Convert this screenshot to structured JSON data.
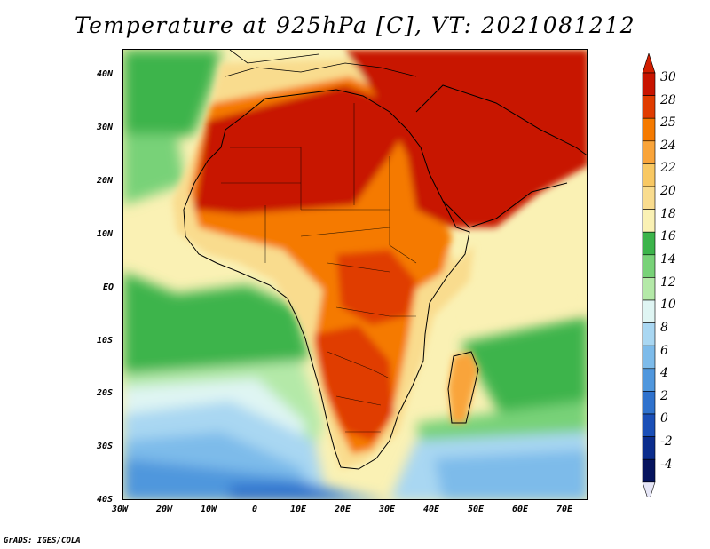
{
  "title": "Temperature at 925hPa [C], VT: 2021081212",
  "footer": "GrADS: IGES/COLA",
  "map": {
    "lon_ticks": [
      "30W",
      "20W",
      "10W",
      "0",
      "10E",
      "20E",
      "30E",
      "40E",
      "50E",
      "60E",
      "70E"
    ],
    "lat_ticks": [
      "40N",
      "30N",
      "20N",
      "10N",
      "EQ",
      "10S",
      "20S",
      "30S",
      "40S"
    ]
  },
  "colorbar": {
    "labels": [
      "30",
      "28",
      "25",
      "24",
      "22",
      "20",
      "18",
      "16",
      "14",
      "12",
      "10",
      "8",
      "6",
      "4",
      "2",
      "0",
      "-2",
      "-4"
    ],
    "colors": [
      "#c81400",
      "#e03c00",
      "#f57a00",
      "#f9a43a",
      "#f8c863",
      "#f9dc8e",
      "#faf1b4",
      "#3cb44b",
      "#78d278",
      "#b4e9a8",
      "#dff5f3",
      "#a9d7f2",
      "#7dbbea",
      "#5097dd",
      "#2f72cd",
      "#1a4fb7",
      "#0b2d8d",
      "#06145e"
    ],
    "top_color": "#d21e00",
    "bottom_color": "#e6e6f7"
  }
}
